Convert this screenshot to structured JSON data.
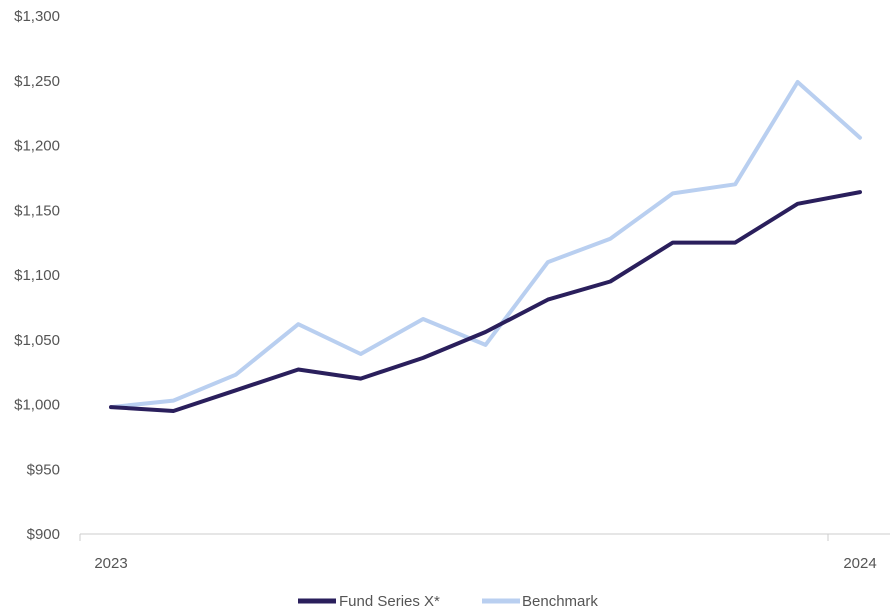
{
  "chart_data": {
    "type": "line",
    "title": "",
    "xlabel": "",
    "ylabel": "",
    "x_tick_labels": [
      "2023",
      "2024"
    ],
    "y_tick_labels": [
      "$900",
      "$950",
      "$1,000",
      "$1,050",
      "$1,100",
      "$1,150",
      "$1,200",
      "$1,250",
      "$1,300"
    ],
    "y_ticks": [
      900,
      950,
      1000,
      1050,
      1100,
      1150,
      1200,
      1250,
      1300
    ],
    "ylim": [
      900,
      1300
    ],
    "grid": false,
    "legend_position": "bottom",
    "series": [
      {
        "name": "Fund Series X*",
        "color": "#2a1f5c",
        "values": [
          998,
          995,
          1011,
          1027,
          1020,
          1036,
          1056,
          1081,
          1095,
          1125,
          1125,
          1155,
          1164
        ]
      },
      {
        "name": "Benchmark",
        "color": "#b9cff0",
        "values": [
          998,
          1003,
          1023,
          1062,
          1039,
          1066,
          1046,
          1110,
          1128,
          1163,
          1170,
          1249,
          1206
        ]
      }
    ]
  }
}
